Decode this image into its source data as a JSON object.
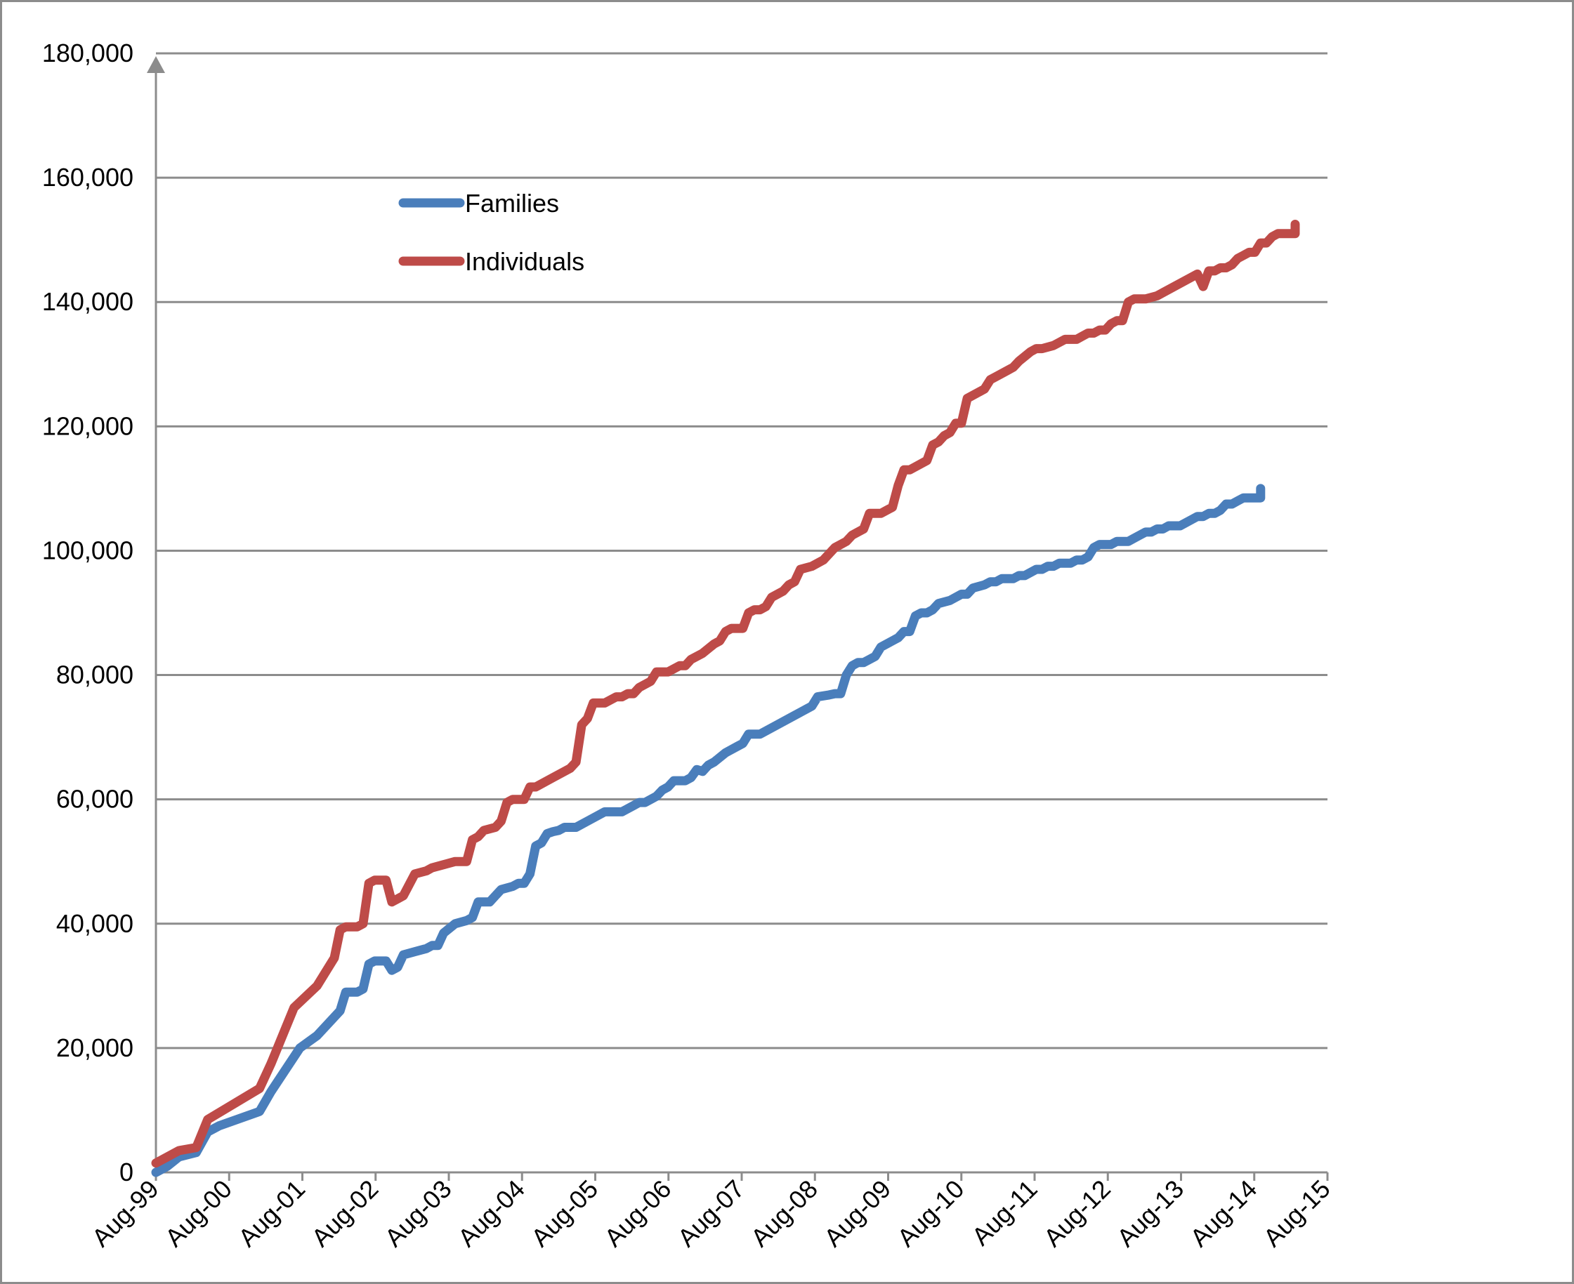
{
  "chart_data": {
    "type": "line",
    "title": "",
    "xlabel": "",
    "ylabel": "",
    "x_tick_labels": [
      "Aug-99",
      "Aug-00",
      "Aug-01",
      "Aug-02",
      "Aug-03",
      "Aug-04",
      "Aug-05",
      "Aug-06",
      "Aug-07",
      "Aug-08",
      "Aug-09",
      "Aug-10",
      "Aug-11",
      "Aug-12",
      "Aug-13",
      "Aug-14",
      "Aug-15"
    ],
    "xlim": [
      1999.583,
      2015.583
    ],
    "ylim": [
      0,
      180000
    ],
    "y_tick_values": [
      0,
      20000,
      40000,
      60000,
      80000,
      100000,
      120000,
      140000,
      160000,
      180000
    ],
    "y_tick_labels": [
      "0",
      "20,000",
      "40,000",
      "60,000",
      "80,000",
      "100,000",
      "120,000",
      "140,000",
      "160,000",
      "180,000"
    ],
    "grid": true,
    "legend_position": "upper-left",
    "series": [
      {
        "name": "Families",
        "color": "#4a7ebb",
        "points": [
          [
            1999.583,
            0
          ],
          [
            1999.75,
            1000
          ],
          [
            1999.917,
            2500
          ],
          [
            2000.167,
            3200
          ],
          [
            2000.333,
            6500
          ],
          [
            2000.5,
            7500
          ],
          [
            2001.083,
            9800
          ],
          [
            2001.25,
            13000
          ],
          [
            2001.667,
            20000
          ],
          [
            2001.917,
            22000
          ],
          [
            2002.25,
            26000
          ],
          [
            2002.333,
            29000
          ],
          [
            2002.5,
            29000
          ],
          [
            2002.583,
            29500
          ],
          [
            2002.667,
            33500
          ],
          [
            2002.75,
            34000
          ],
          [
            2002.917,
            34000
          ],
          [
            2003.0,
            32500
          ],
          [
            2003.083,
            33000
          ],
          [
            2003.167,
            35000
          ],
          [
            2003.333,
            35500
          ],
          [
            2003.5,
            36000
          ],
          [
            2003.583,
            36500
          ],
          [
            2003.667,
            36500
          ],
          [
            2003.75,
            38500
          ],
          [
            2003.917,
            40000
          ],
          [
            2004.083,
            40500
          ],
          [
            2004.167,
            41000
          ],
          [
            2004.25,
            43500
          ],
          [
            2004.417,
            43500
          ],
          [
            2004.5,
            44500
          ],
          [
            2004.583,
            45500
          ],
          [
            2004.75,
            46000
          ],
          [
            2004.833,
            46500
          ],
          [
            2004.917,
            46500
          ],
          [
            2005.0,
            48000
          ],
          [
            2005.083,
            52500
          ],
          [
            2005.167,
            53000
          ],
          [
            2005.25,
            54500
          ],
          [
            2005.333,
            54800
          ],
          [
            2005.417,
            55000
          ],
          [
            2005.5,
            55500
          ],
          [
            2005.667,
            55500
          ],
          [
            2005.833,
            56500
          ],
          [
            2006.0,
            57500
          ],
          [
            2006.083,
            58000
          ],
          [
            2006.333,
            58000
          ],
          [
            2006.5,
            59000
          ],
          [
            2006.583,
            59500
          ],
          [
            2006.667,
            59500
          ],
          [
            2006.833,
            60500
          ],
          [
            2006.917,
            61500
          ],
          [
            2007.0,
            62000
          ],
          [
            2007.083,
            63000
          ],
          [
            2007.25,
            63000
          ],
          [
            2007.333,
            63500
          ],
          [
            2007.417,
            64800
          ],
          [
            2007.5,
            64500
          ],
          [
            2007.583,
            65500
          ],
          [
            2007.667,
            66000
          ],
          [
            2007.833,
            67500
          ],
          [
            2008.0,
            68500
          ],
          [
            2008.083,
            69000
          ],
          [
            2008.167,
            70500
          ],
          [
            2008.333,
            70500
          ],
          [
            2008.583,
            72000
          ],
          [
            2009.083,
            75000
          ],
          [
            2009.167,
            76500
          ],
          [
            2009.333,
            76800
          ],
          [
            2009.417,
            77000
          ],
          [
            2009.5,
            77000
          ],
          [
            2009.583,
            80000
          ],
          [
            2009.667,
            81500
          ],
          [
            2009.75,
            82000
          ],
          [
            2009.833,
            82000
          ],
          [
            2009.917,
            82500
          ],
          [
            2010.0,
            83000
          ],
          [
            2010.083,
            84500
          ],
          [
            2010.333,
            86000
          ],
          [
            2010.417,
            87000
          ],
          [
            2010.5,
            87000
          ],
          [
            2010.583,
            89500
          ],
          [
            2010.667,
            90000
          ],
          [
            2010.75,
            90000
          ],
          [
            2010.833,
            90500
          ],
          [
            2010.917,
            91500
          ],
          [
            2011.083,
            92000
          ],
          [
            2011.25,
            93000
          ],
          [
            2011.333,
            93000
          ],
          [
            2011.417,
            94000
          ],
          [
            2011.583,
            94500
          ],
          [
            2011.667,
            95000
          ],
          [
            2011.75,
            95000
          ],
          [
            2011.833,
            95500
          ],
          [
            2011.917,
            95500
          ],
          [
            2012.0,
            95500
          ],
          [
            2012.083,
            96000
          ],
          [
            2012.167,
            96000
          ],
          [
            2012.333,
            97000
          ],
          [
            2012.417,
            97000
          ],
          [
            2012.5,
            97500
          ],
          [
            2012.583,
            97500
          ],
          [
            2012.667,
            98000
          ],
          [
            2012.75,
            98000
          ],
          [
            2012.833,
            98000
          ],
          [
            2012.917,
            98500
          ],
          [
            2013.0,
            98500
          ],
          [
            2013.083,
            99000
          ],
          [
            2013.167,
            100500
          ],
          [
            2013.25,
            101000
          ],
          [
            2013.417,
            101000
          ],
          [
            2013.5,
            101500
          ],
          [
            2013.583,
            101500
          ],
          [
            2013.667,
            101500
          ],
          [
            2013.75,
            102000
          ],
          [
            2013.833,
            102500
          ],
          [
            2013.917,
            103000
          ],
          [
            2014.0,
            103000
          ],
          [
            2014.083,
            103500
          ],
          [
            2014.167,
            103500
          ],
          [
            2014.25,
            104000
          ],
          [
            2014.417,
            104000
          ],
          [
            2014.583,
            105000
          ],
          [
            2014.667,
            105500
          ],
          [
            2014.75,
            105500
          ],
          [
            2014.833,
            106000
          ],
          [
            2014.917,
            106000
          ],
          [
            2015.0,
            106500
          ],
          [
            2015.083,
            107500
          ],
          [
            2015.167,
            107500
          ],
          [
            2015.25,
            108000
          ],
          [
            2015.333,
            108500
          ],
          [
            2015.417,
            108500
          ],
          [
            2015.5,
            108500
          ],
          [
            2015.583,
            108500
          ],
          [
            2015.583,
            110000
          ]
        ]
      },
      {
        "name": "Individuals",
        "color": "#be4b48",
        "points": [
          [
            1999.583,
            1500
          ],
          [
            1999.917,
            3500
          ],
          [
            2000.167,
            4000
          ],
          [
            2000.333,
            8500
          ],
          [
            2001.083,
            13500
          ],
          [
            2001.25,
            17500
          ],
          [
            2001.583,
            26500
          ],
          [
            2001.917,
            30000
          ],
          [
            2002.167,
            34500
          ],
          [
            2002.25,
            39000
          ],
          [
            2002.333,
            39500
          ],
          [
            2002.5,
            39500
          ],
          [
            2002.583,
            40000
          ],
          [
            2002.667,
            46500
          ],
          [
            2002.75,
            47000
          ],
          [
            2002.917,
            47000
          ],
          [
            2003.0,
            43500
          ],
          [
            2003.083,
            44000
          ],
          [
            2003.167,
            44500
          ],
          [
            2003.333,
            48000
          ],
          [
            2003.5,
            48500
          ],
          [
            2003.583,
            49000
          ],
          [
            2003.75,
            49500
          ],
          [
            2003.917,
            50000
          ],
          [
            2004.083,
            50000
          ],
          [
            2004.167,
            53500
          ],
          [
            2004.25,
            54000
          ],
          [
            2004.333,
            55000
          ],
          [
            2004.5,
            55500
          ],
          [
            2004.583,
            56500
          ],
          [
            2004.667,
            59500
          ],
          [
            2004.75,
            60000
          ],
          [
            2004.917,
            60000
          ],
          [
            2005.0,
            62000
          ],
          [
            2005.083,
            62000
          ],
          [
            2005.333,
            63500
          ],
          [
            2005.5,
            64500
          ],
          [
            2005.583,
            65000
          ],
          [
            2005.667,
            66000
          ],
          [
            2005.75,
            72000
          ],
          [
            2005.833,
            73000
          ],
          [
            2005.917,
            75500
          ],
          [
            2006.083,
            75500
          ],
          [
            2006.25,
            76500
          ],
          [
            2006.333,
            76500
          ],
          [
            2006.417,
            77000
          ],
          [
            2006.5,
            77000
          ],
          [
            2006.583,
            78000
          ],
          [
            2006.667,
            78500
          ],
          [
            2006.75,
            79000
          ],
          [
            2006.833,
            80500
          ],
          [
            2007.0,
            80500
          ],
          [
            2007.167,
            81500
          ],
          [
            2007.25,
            81500
          ],
          [
            2007.333,
            82500
          ],
          [
            2007.5,
            83500
          ],
          [
            2007.667,
            85000
          ],
          [
            2007.75,
            85500
          ],
          [
            2007.833,
            87000
          ],
          [
            2007.917,
            87500
          ],
          [
            2008.083,
            87500
          ],
          [
            2008.167,
            90000
          ],
          [
            2008.25,
            90500
          ],
          [
            2008.333,
            90500
          ],
          [
            2008.417,
            91000
          ],
          [
            2008.5,
            92500
          ],
          [
            2008.667,
            93500
          ],
          [
            2008.75,
            94500
          ],
          [
            2008.833,
            95000
          ],
          [
            2008.917,
            97000
          ],
          [
            2009.083,
            97500
          ],
          [
            2009.25,
            98500
          ],
          [
            2009.417,
            100500
          ],
          [
            2009.5,
            101000
          ],
          [
            2009.583,
            101500
          ],
          [
            2009.667,
            102500
          ],
          [
            2009.833,
            103500
          ],
          [
            2009.917,
            106000
          ],
          [
            2010.083,
            106000
          ],
          [
            2010.167,
            106500
          ],
          [
            2010.25,
            107000
          ],
          [
            2010.333,
            110500
          ],
          [
            2010.417,
            113000
          ],
          [
            2010.5,
            113000
          ],
          [
            2010.583,
            113500
          ],
          [
            2010.75,
            114500
          ],
          [
            2010.833,
            117000
          ],
          [
            2010.917,
            117500
          ],
          [
            2011.0,
            118500
          ],
          [
            2011.083,
            119000
          ],
          [
            2011.167,
            120500
          ],
          [
            2011.25,
            120500
          ],
          [
            2011.333,
            124500
          ],
          [
            2011.583,
            126000
          ],
          [
            2011.667,
            127500
          ],
          [
            2011.75,
            128000
          ],
          [
            2011.917,
            129000
          ],
          [
            2012.0,
            129500
          ],
          [
            2012.083,
            130500
          ],
          [
            2012.25,
            132000
          ],
          [
            2012.333,
            132500
          ],
          [
            2012.417,
            132500
          ],
          [
            2012.583,
            133000
          ],
          [
            2012.75,
            134000
          ],
          [
            2012.917,
            134000
          ],
          [
            2013.0,
            134500
          ],
          [
            2013.083,
            135000
          ],
          [
            2013.167,
            135000
          ],
          [
            2013.25,
            135500
          ],
          [
            2013.333,
            135500
          ],
          [
            2013.417,
            136500
          ],
          [
            2013.5,
            137000
          ],
          [
            2013.583,
            137000
          ],
          [
            2013.667,
            140000
          ],
          [
            2013.75,
            140500
          ],
          [
            2013.917,
            140500
          ],
          [
            2014.083,
            141000
          ],
          [
            2014.167,
            141500
          ],
          [
            2014.583,
            144000
          ],
          [
            2014.667,
            144500
          ],
          [
            2014.75,
            142500
          ],
          [
            2014.833,
            145000
          ],
          [
            2014.917,
            145000
          ],
          [
            2015.0,
            145500
          ],
          [
            2015.083,
            145500
          ],
          [
            2015.167,
            146000
          ],
          [
            2015.25,
            147000
          ],
          [
            2015.333,
            147500
          ],
          [
            2015.417,
            148000
          ],
          [
            2015.5,
            148000
          ],
          [
            2015.583,
            149500
          ],
          [
            2015.667,
            149500
          ],
          [
            2015.75,
            150500
          ],
          [
            2015.833,
            151000
          ],
          [
            2015.917,
            151000
          ],
          [
            2016.0,
            151000
          ],
          [
            2016.083,
            151000
          ],
          [
            2016.083,
            152500
          ]
        ]
      }
    ]
  }
}
